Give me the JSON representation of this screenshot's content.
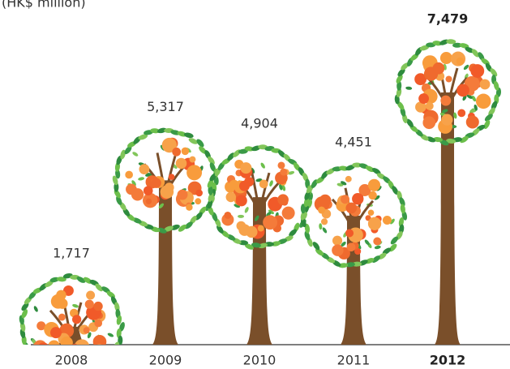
{
  "chart_data": {
    "type": "tree-bar",
    "y_label": "(HK$ million)",
    "categories": [
      "2008",
      "2009",
      "2010",
      "2011",
      "2012"
    ],
    "values": [
      1717,
      5317,
      4904,
      4451,
      7479
    ],
    "value_labels": [
      "1,717",
      "5,317",
      "4,904",
      "4,451",
      "7,479"
    ],
    "color": "#7a4f2a"
  }
}
